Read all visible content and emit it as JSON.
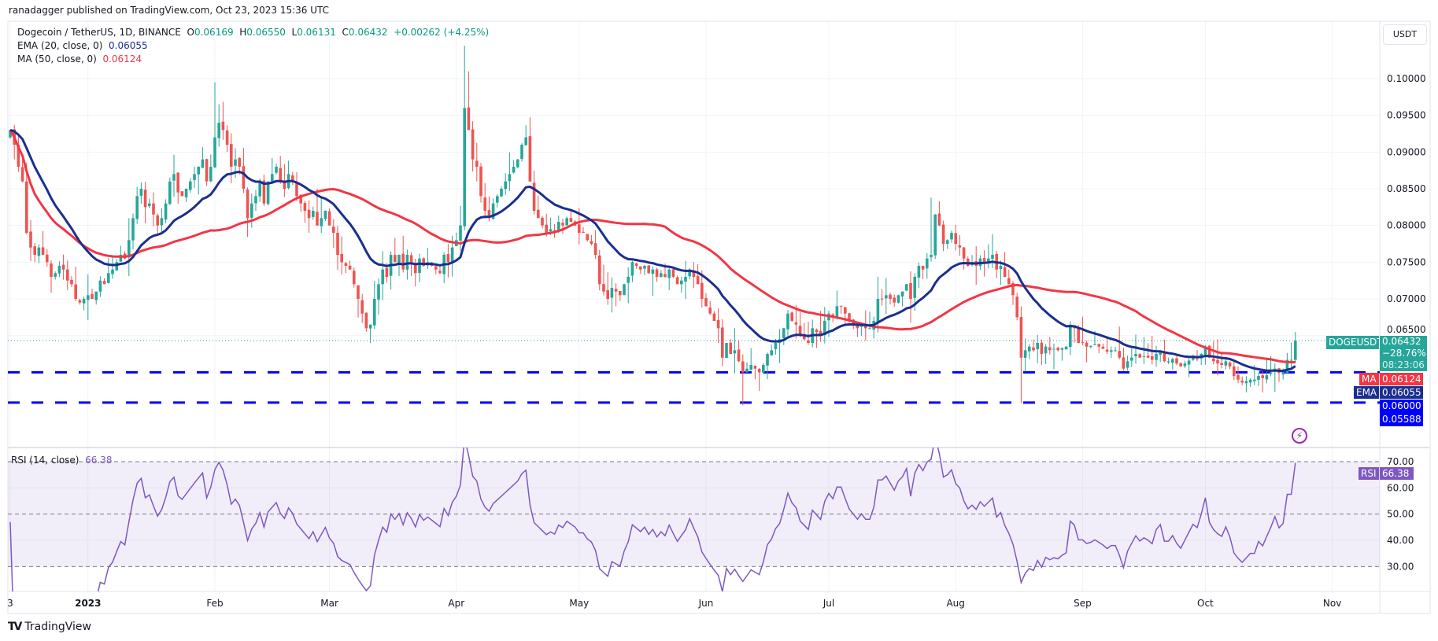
{
  "header": {
    "published": "ranadagger published on TradingView.com, Oct 23, 2023 15:36 UTC"
  },
  "legend": {
    "symbol": "Dogecoin / TetherUS, 1D, BINANCE",
    "o_label": "O",
    "o_value": "0.06169",
    "h_label": "H",
    "h_value": "0.06550",
    "l_label": "L",
    "l_value": "0.06131",
    "c_label": "C",
    "c_value": "0.06432",
    "change": "+0.00262 (+4.25%)",
    "ema_label": "EMA (20, close, 0)",
    "ema_value": "0.06055",
    "ma_label": "MA (50, close, 0)",
    "ma_value": "0.06124",
    "rsi_label": "RSI (14, close)",
    "rsi_value": "66.38"
  },
  "price_axis": {
    "currency_button": "USDT",
    "ticks": [
      "0.10000",
      "0.09500",
      "0.09000",
      "0.08500",
      "0.08000",
      "0.07500",
      "0.07000",
      "0.06500"
    ],
    "last_price_symbol": "DOGEUSDT",
    "last_price": "0.06432",
    "last_change_pct": "−28.76%",
    "countdown": "08:23:06",
    "ma_tag": "MA",
    "ma_tag_value": "0.06124",
    "ema_tag": "EMA",
    "ema_tag_value": "0.06055",
    "level_1": "0.06000",
    "level_2": "0.05588"
  },
  "rsi_axis": {
    "ticks": [
      "70.00",
      "60.00",
      "50.00",
      "40.00",
      "30.00"
    ],
    "tag": "RSI",
    "tag_value": "66.38"
  },
  "time_axis": [
    {
      "text": "3",
      "date": "2022-12-13"
    },
    {
      "text": "2023",
      "date": "2023-01-01"
    },
    {
      "text": "Feb",
      "date": "2023-02-01"
    },
    {
      "text": "Mar",
      "date": "2023-03-01"
    },
    {
      "text": "Apr",
      "date": "2023-04-01"
    },
    {
      "text": "May",
      "date": "2023-05-01"
    },
    {
      "text": "Jun",
      "date": "2023-06-01"
    },
    {
      "text": "Jul",
      "date": "2023-07-01"
    },
    {
      "text": "Aug",
      "date": "2023-08-01"
    },
    {
      "text": "Sep",
      "date": "2023-09-01"
    },
    {
      "text": "Oct",
      "date": "2023-10-01"
    },
    {
      "text": "Nov",
      "date": "2023-11-01"
    }
  ],
  "footer": {
    "brand": "TradingView"
  },
  "colors": {
    "up": "#26a69a",
    "down": "#ef5350",
    "ema": "#1a2f8f",
    "ma": "#f23645",
    "levels": "#0000ff",
    "rsi": "#7e57c2",
    "alert": "#9c27b0"
  },
  "chart_data": {
    "type": "candlestick",
    "interval": "1D",
    "ylim": [
      0.0535,
      0.1045
    ],
    "horizontal_levels": [
      0.06,
      0.05588
    ],
    "last_candle": {
      "date": "2023-10-23",
      "open": 0.06169,
      "high": 0.0655,
      "low": 0.06131,
      "close": 0.06432
    },
    "notable_wicks": [
      {
        "date": "2023-02-01",
        "high": 0.0995
      },
      {
        "date": "2023-04-03",
        "high": 0.1045
      },
      {
        "date": "2023-04-04",
        "high": 0.101
      },
      {
        "date": "2023-06-10",
        "low": 0.0555
      },
      {
        "date": "2023-07-26",
        "high": 0.0838
      },
      {
        "date": "2023-08-17",
        "low": 0.0558
      },
      {
        "date": "2023-10-09",
        "low": 0.0585
      }
    ],
    "closes_by_month": [
      {
        "month": "2022-12",
        "first_day": 13,
        "closes": [
          0.093,
          0.091,
          0.088,
          0.086,
          0.079,
          0.077,
          0.076,
          0.077,
          0.076,
          0.075,
          0.073,
          0.0735,
          0.0745,
          0.074,
          0.0725,
          0.072,
          0.07,
          0.0695,
          0.07
        ]
      },
      {
        "month": "2023-01",
        "first_day": 1,
        "closes": [
          0.0705,
          0.07,
          0.071,
          0.0725,
          0.072,
          0.0735,
          0.074,
          0.075,
          0.076,
          0.0755,
          0.078,
          0.081,
          0.084,
          0.085,
          0.0825,
          0.083,
          0.0815,
          0.08,
          0.081,
          0.083,
          0.086,
          0.087,
          0.0845,
          0.084,
          0.085,
          0.086,
          0.087,
          0.088,
          0.089,
          0.086,
          0.088
        ]
      },
      {
        "month": "2023-02",
        "first_day": 1,
        "closes": [
          0.092,
          0.094,
          0.093,
          0.091,
          0.088,
          0.089,
          0.088,
          0.085,
          0.081,
          0.083,
          0.084,
          0.086,
          0.083,
          0.086,
          0.087,
          0.088,
          0.086,
          0.085,
          0.087,
          0.086,
          0.084,
          0.083,
          0.082,
          0.081,
          0.082,
          0.08,
          0.081,
          0.082
        ]
      },
      {
        "month": "2023-03",
        "first_day": 1,
        "closes": [
          0.08,
          0.079,
          0.076,
          0.075,
          0.0745,
          0.074,
          0.072,
          0.07,
          0.068,
          0.066,
          0.0665,
          0.07,
          0.072,
          0.074,
          0.073,
          0.076,
          0.075,
          0.076,
          0.074,
          0.076,
          0.075,
          0.0735,
          0.0755,
          0.0745,
          0.075,
          0.0745,
          0.074,
          0.0735,
          0.076,
          0.075,
          0.077
        ]
      },
      {
        "month": "2023-04",
        "first_day": 1,
        "closes": [
          0.078,
          0.08,
          0.096,
          0.093,
          0.089,
          0.088,
          0.084,
          0.082,
          0.081,
          0.083,
          0.084,
          0.085,
          0.086,
          0.087,
          0.088,
          0.089,
          0.091,
          0.092,
          0.086,
          0.082,
          0.081,
          0.08,
          0.079,
          0.0795,
          0.079,
          0.0805,
          0.08,
          0.081,
          0.0805,
          0.08
        ]
      },
      {
        "month": "2023-05",
        "first_day": 1,
        "closes": [
          0.079,
          0.079,
          0.078,
          0.0775,
          0.076,
          0.072,
          0.071,
          0.07,
          0.0715,
          0.071,
          0.0705,
          0.072,
          0.073,
          0.075,
          0.0745,
          0.074,
          0.0745,
          0.0735,
          0.074,
          0.073,
          0.0735,
          0.073,
          0.074,
          0.073,
          0.072,
          0.0725,
          0.073,
          0.074,
          0.073,
          0.072,
          0.07
        ]
      },
      {
        "month": "2023-06",
        "first_day": 1,
        "closes": [
          0.069,
          0.068,
          0.067,
          0.066,
          0.062,
          0.064,
          0.0625,
          0.063,
          0.0615,
          0.06,
          0.0605,
          0.061,
          0.0605,
          0.06,
          0.061,
          0.0625,
          0.063,
          0.064,
          0.0645,
          0.066,
          0.068,
          0.067,
          0.0665,
          0.065,
          0.0645,
          0.064,
          0.066,
          0.0655,
          0.065,
          0.067
        ]
      },
      {
        "month": "2023-07",
        "first_day": 1,
        "closes": [
          0.068,
          0.0675,
          0.069,
          0.069,
          0.068,
          0.067,
          0.0665,
          0.066,
          0.0665,
          0.066,
          0.066,
          0.067,
          0.07,
          0.07,
          0.0705,
          0.07,
          0.0695,
          0.0705,
          0.071,
          0.072,
          0.07,
          0.073,
          0.0745,
          0.074,
          0.0755,
          0.076,
          0.0815,
          0.08,
          0.0775,
          0.078,
          0.079
        ]
      },
      {
        "month": "2023-08",
        "first_day": 1,
        "closes": [
          0.0775,
          0.077,
          0.0755,
          0.0745,
          0.075,
          0.0745,
          0.0755,
          0.075,
          0.0755,
          0.076,
          0.074,
          0.0745,
          0.073,
          0.072,
          0.0705,
          0.0675,
          0.062,
          0.063,
          0.0635,
          0.063,
          0.064,
          0.0625,
          0.0635,
          0.063,
          0.0632,
          0.063,
          0.0633,
          0.0635,
          0.0665,
          0.066,
          0.064
        ]
      },
      {
        "month": "2023-09",
        "first_day": 1,
        "closes": [
          0.064,
          0.0635,
          0.0636,
          0.0638,
          0.0635,
          0.0632,
          0.0628,
          0.063,
          0.063,
          0.062,
          0.0605,
          0.0615,
          0.062,
          0.0625,
          0.062,
          0.0622,
          0.062,
          0.0617,
          0.0625,
          0.0628,
          0.0615,
          0.0615,
          0.0618,
          0.0612,
          0.0608,
          0.0612,
          0.0616,
          0.062,
          0.0618,
          0.0625
        ]
      },
      {
        "month": "2023-10",
        "first_day": 1,
        "closes": [
          0.0635,
          0.062,
          0.0615,
          0.0612,
          0.061,
          0.0615,
          0.0608,
          0.0595,
          0.059,
          0.0586,
          0.0588,
          0.059,
          0.059,
          0.0595,
          0.0592,
          0.0596,
          0.06,
          0.0605,
          0.0599,
          0.0601,
          0.0617,
          0.0617,
          0.0643
        ]
      }
    ],
    "indicators": [
      {
        "name": "EMA",
        "period": 20,
        "source": "close"
      },
      {
        "name": "MA",
        "period": 50,
        "source": "close"
      },
      {
        "name": "RSI",
        "period": 14,
        "source": "close",
        "levels": [
          70,
          50,
          30
        ]
      }
    ]
  }
}
